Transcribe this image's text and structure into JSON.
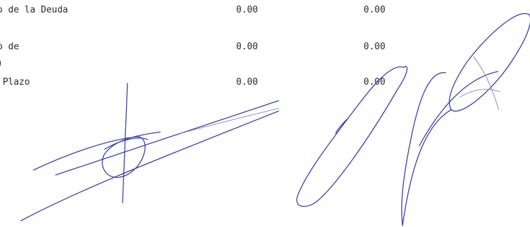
{
  "rows": [
    {
      "label": "o de la Deuda",
      "col1": "0.00",
      "col2": "0.00"
    },
    {
      "label": "o de",
      "label_cont": ")",
      "col1": "0.00",
      "col2": "0.00"
    },
    {
      "label": " Plazo",
      "col1": "0.00",
      "col2": "0.00"
    }
  ],
  "signatures": [
    {
      "type": "handwritten-signature",
      "ink_color": "#3b3fae"
    },
    {
      "type": "handwritten-signature",
      "ink_color": "#3b3fae"
    }
  ]
}
